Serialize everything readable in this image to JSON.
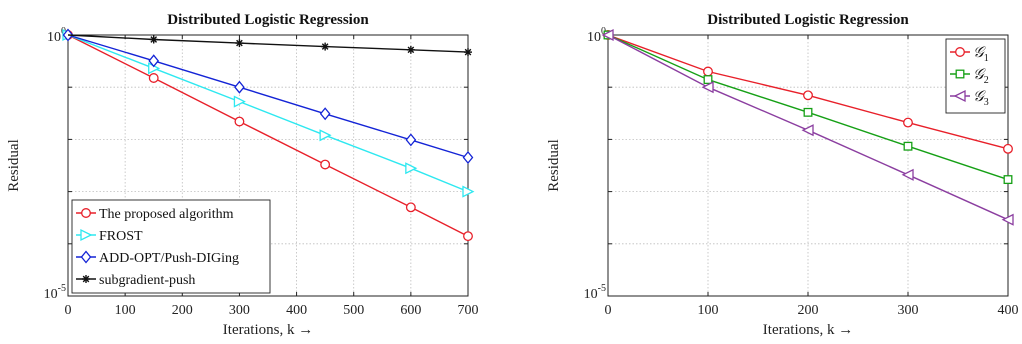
{
  "chart_data": [
    {
      "type": "line",
      "title": "Distributed Logistic Regression",
      "xlabel": "Iterations, k →",
      "ylabel": "Residual",
      "xlim": [
        0,
        700
      ],
      "ylim": [
        1e-05,
        1
      ],
      "yscale": "log",
      "grid": true,
      "legend_position": "bottom-left",
      "xticks": [
        "0",
        "100",
        "200",
        "300",
        "400",
        "500",
        "600",
        "700"
      ],
      "yticks": [
        {
          "base": "10",
          "exp": "0"
        },
        {
          "base": "10",
          "exp": "-5"
        }
      ],
      "series": [
        {
          "name": "The proposed algorithm",
          "color": "#e8202a",
          "marker": "circle",
          "x": [
            0,
            150,
            300,
            450,
            600,
            700
          ],
          "y": [
            1,
            0.15,
            0.022,
            0.0033,
            0.0005,
            0.00014
          ]
        },
        {
          "name": "FROST",
          "color": "#2ee8f0",
          "marker": "triangle-right",
          "x": [
            0,
            150,
            300,
            450,
            600,
            700
          ],
          "y": [
            1,
            0.23,
            0.053,
            0.012,
            0.0028,
            0.001
          ]
        },
        {
          "name": "ADD-OPT/Push-DIGing",
          "color": "#1424d6",
          "marker": "diamond",
          "x": [
            0,
            150,
            300,
            450,
            600,
            700
          ],
          "y": [
            1,
            0.32,
            0.1,
            0.031,
            0.0098,
            0.0045
          ]
        },
        {
          "name": "subgradient-push",
          "color": "#111111",
          "marker": "star",
          "x": [
            0,
            150,
            300,
            450,
            600,
            700
          ],
          "y": [
            1,
            0.82,
            0.7,
            0.6,
            0.52,
            0.47
          ]
        }
      ]
    },
    {
      "type": "line",
      "title": "Distributed Logistic Regression",
      "xlabel": "Iterations, k →",
      "ylabel": "Residual",
      "xlim": [
        0,
        400
      ],
      "ylim": [
        1e-05,
        1
      ],
      "yscale": "log",
      "grid": true,
      "legend_position": "top-right",
      "xticks": [
        "0",
        "100",
        "200",
        "300",
        "400"
      ],
      "yticks": [
        {
          "base": "10",
          "exp": "0"
        },
        {
          "base": "10",
          "exp": "-5"
        }
      ],
      "series": [
        {
          "name": "𝒢",
          "sub": "1",
          "color": "#e8202a",
          "marker": "circle",
          "x": [
            0,
            100,
            200,
            300,
            400
          ],
          "y": [
            1,
            0.2,
            0.07,
            0.021,
            0.0066
          ]
        },
        {
          "name": "𝒢",
          "sub": "2",
          "color": "#16a016",
          "marker": "square",
          "x": [
            0,
            100,
            200,
            300,
            400
          ],
          "y": [
            1,
            0.14,
            0.033,
            0.0074,
            0.0017
          ]
        },
        {
          "name": "𝒢",
          "sub": "3",
          "color": "#8b3ea0",
          "marker": "triangle-left",
          "x": [
            0,
            100,
            200,
            300,
            400
          ],
          "y": [
            1,
            0.1,
            0.015,
            0.0021,
            0.00029
          ]
        }
      ]
    }
  ]
}
